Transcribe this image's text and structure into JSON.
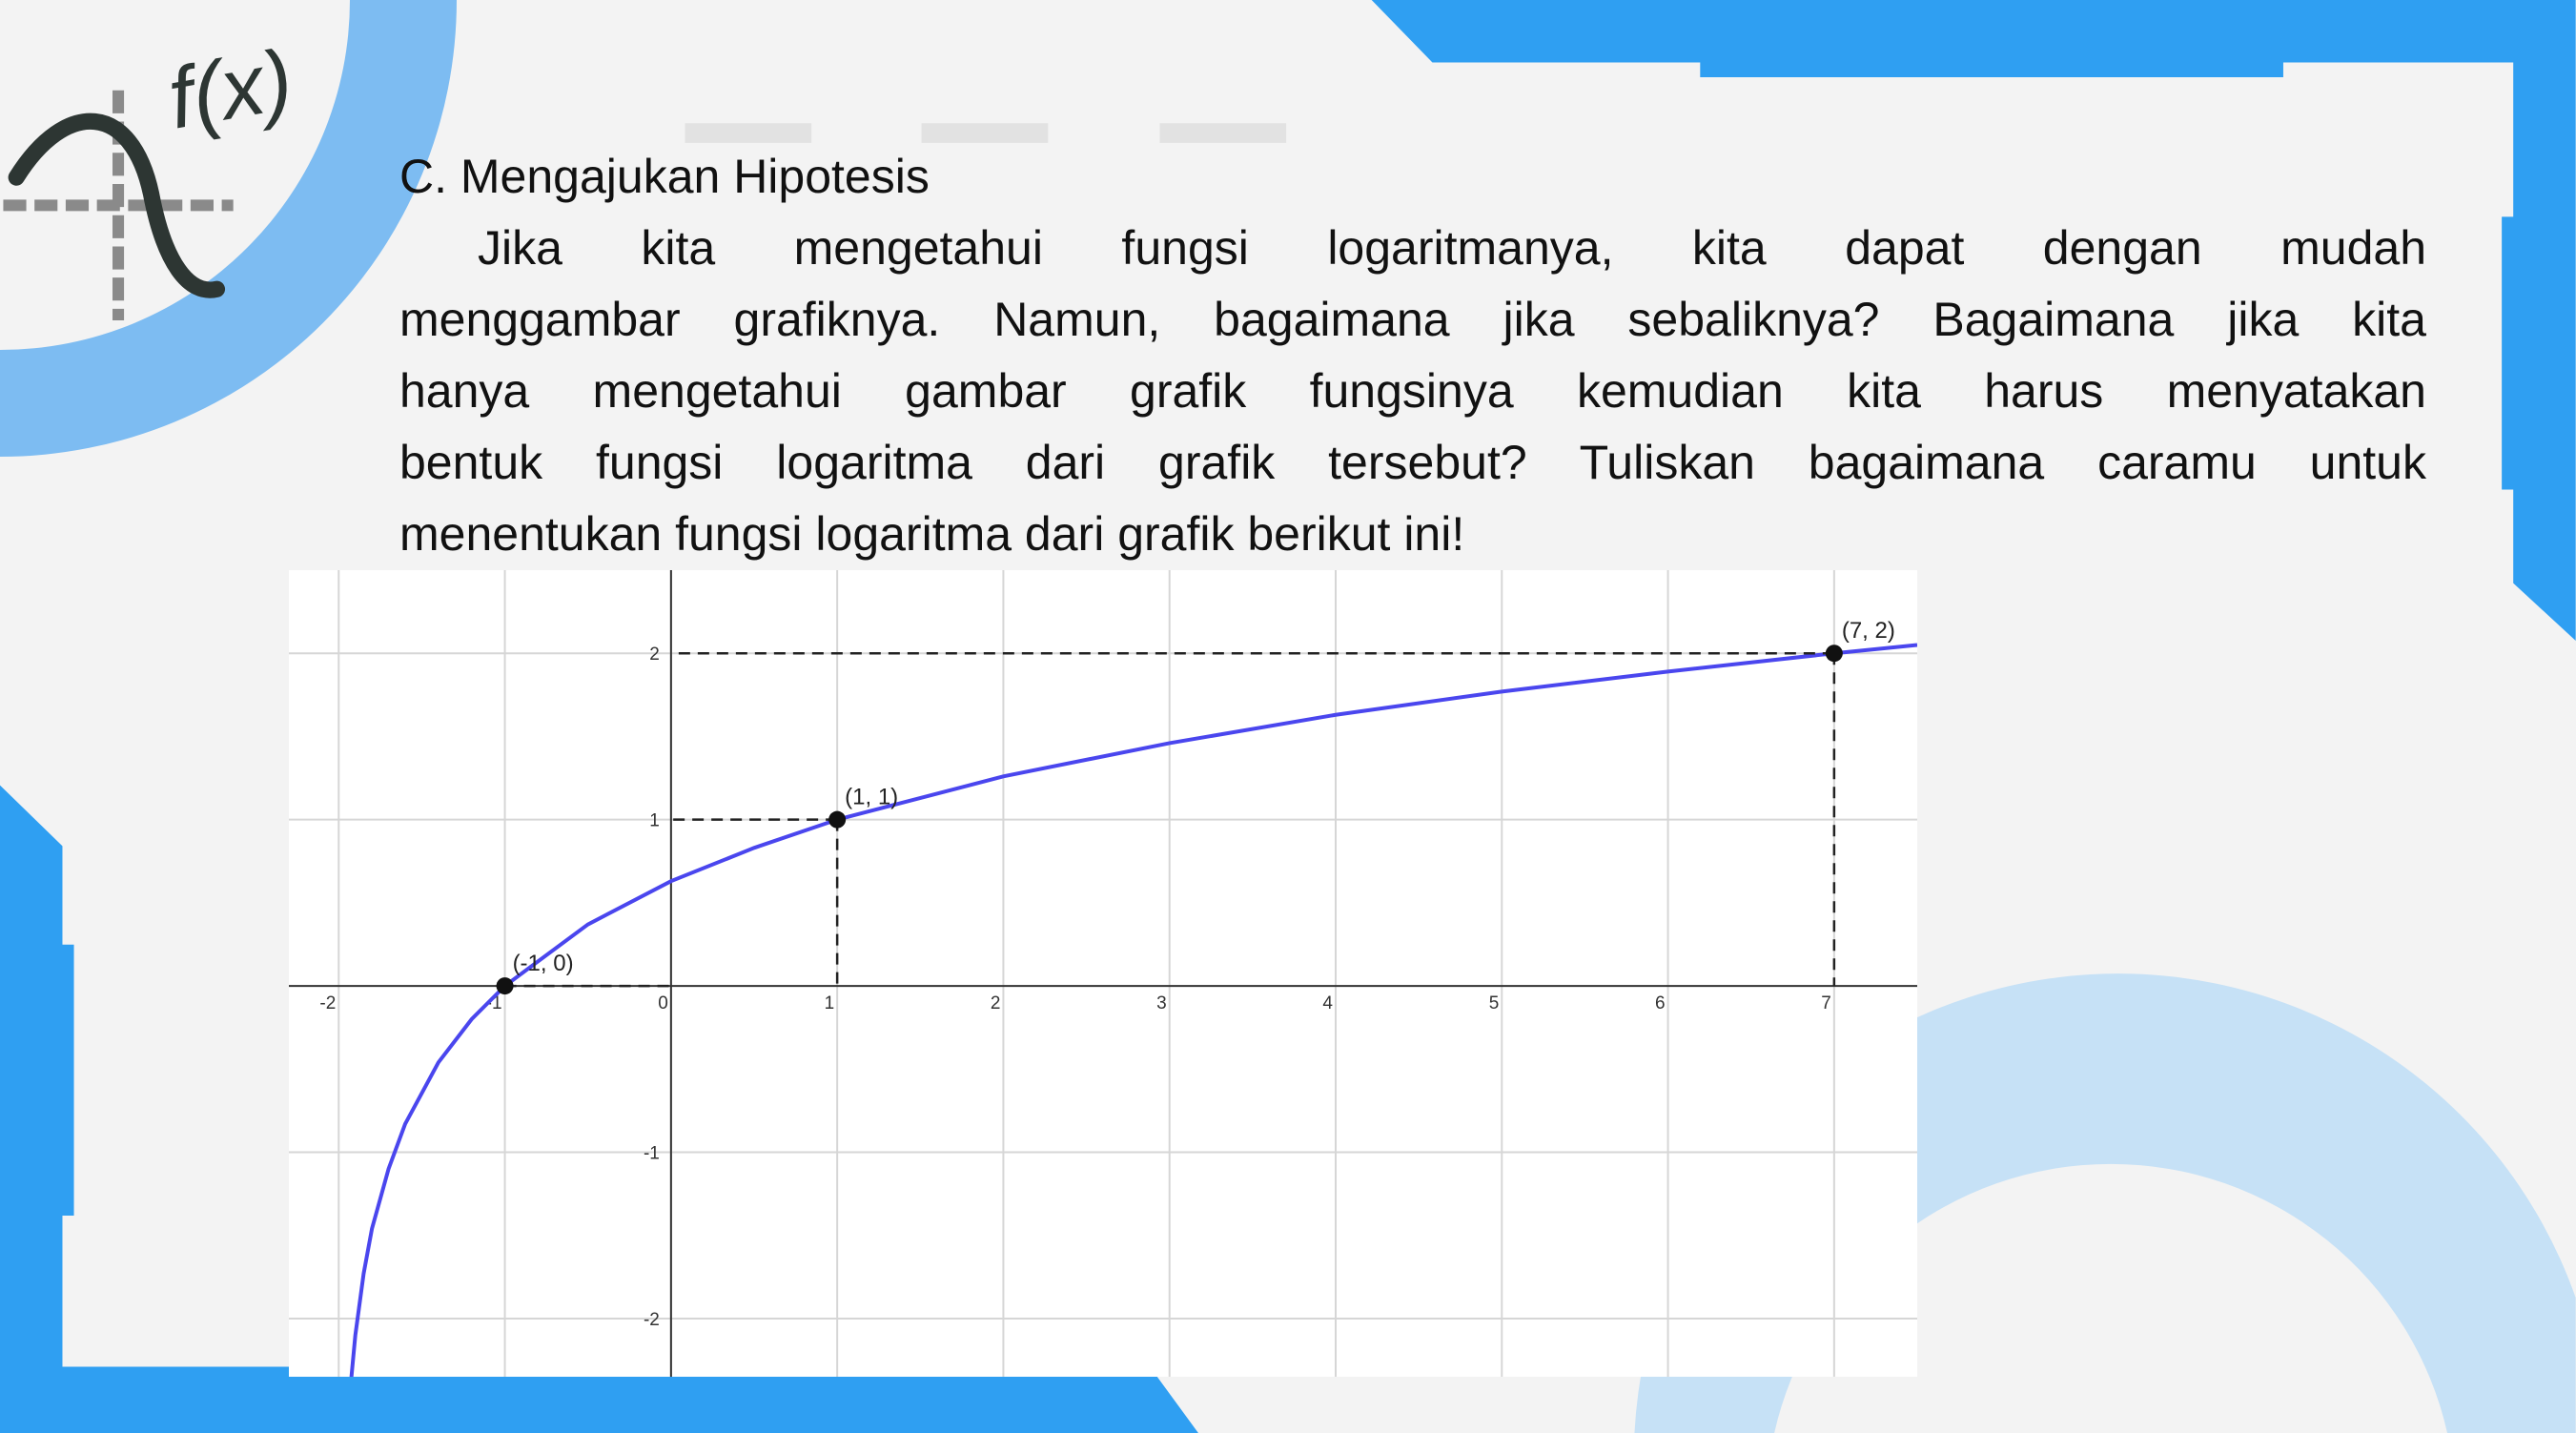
{
  "logo": "f(x)",
  "heading": "C. Mengajukan Hipotesis",
  "paragraph_lines": [
    "Jika kita mengetahui fungsi logaritmanya, kita dapat dengan mudah",
    "menggambar grafiknya. Namun, bagaimana jika sebaliknya? Bagaimana jika kita",
    "hanya mengetahui gambar grafik fungsinya kemudian kita harus menyatakan",
    "bentuk fungsi logaritma dari grafik tersebut? Tuliskan bagaimana caramu untuk",
    "menentukan fungsi logaritma dari grafik berikut ini!"
  ],
  "chart_data": {
    "type": "line",
    "x": [
      -1.93,
      -1.9,
      -1.85,
      -1.8,
      -1.7,
      -1.6,
      -1.4,
      -1.2,
      -1,
      -0.5,
      0,
      0.5,
      1,
      2,
      3,
      4,
      5,
      6,
      7,
      7.5
    ],
    "values": [
      -2.42,
      -2.1,
      -1.73,
      -1.46,
      -1.1,
      -0.83,
      -0.46,
      -0.2,
      0,
      0.37,
      0.63,
      0.83,
      1,
      1.26,
      1.46,
      1.63,
      1.77,
      1.89,
      2,
      2.05
    ],
    "color": "#4a46ee",
    "points": [
      {
        "x": -1,
        "y": 0,
        "label": "(-1, 0)"
      },
      {
        "x": 1,
        "y": 1,
        "label": "(1, 1)"
      },
      {
        "x": 7,
        "y": 2,
        "label": "(7, 2)"
      }
    ],
    "xlim": [
      -2.3,
      7.5
    ],
    "ylim": [
      -2.35,
      2.5
    ],
    "xticks": [
      -2,
      -1,
      0,
      1,
      2,
      3,
      4,
      5,
      6,
      7
    ],
    "yticks": [
      -2,
      -1,
      1,
      2
    ],
    "grid": true
  }
}
